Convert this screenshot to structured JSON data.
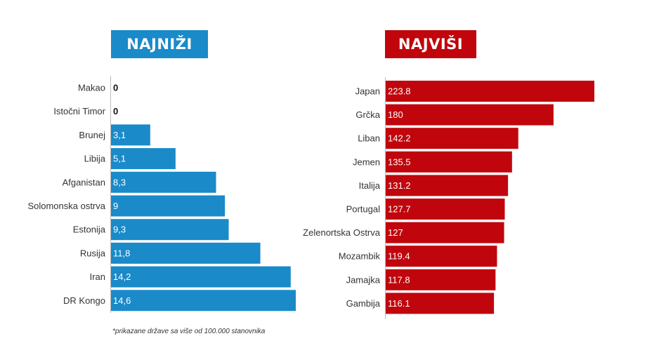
{
  "colors": {
    "left": "#1a8ac9",
    "right": "#c0060c"
  },
  "chart_data": [
    {
      "type": "bar",
      "orientation": "horizontal",
      "title": "NAJNIŽI",
      "categories": [
        "Makao",
        "Istočni Timor",
        "Brunej",
        "Libija",
        "Afganistan",
        "Solomonska ostrva",
        "Estonija",
        "Rusija",
        "Iran",
        "DR Kongo"
      ],
      "values": [
        0,
        0,
        3.1,
        5.1,
        8.3,
        9,
        9.3,
        11.8,
        14.2,
        14.6
      ],
      "value_labels": [
        "0",
        "0",
        "3,1",
        "5,1",
        "8,3",
        "9",
        "9,3",
        "11,8",
        "14,2",
        "14,6"
      ],
      "xlim": [
        0,
        14.6
      ]
    },
    {
      "type": "bar",
      "orientation": "horizontal",
      "title": "NAJVIŠI",
      "categories": [
        "Japan",
        "Grčka",
        "Liban",
        "Jemen",
        "Italija",
        "Portugal",
        "Zelenortska Ostrva",
        "Mozambik",
        "Jamajka",
        "Gambija"
      ],
      "values": [
        223.8,
        180,
        142.2,
        135.5,
        131.2,
        127.7,
        127,
        119.4,
        117.8,
        116.1
      ],
      "value_labels": [
        "223.8",
        "180",
        "142.2",
        "135.5",
        "131.2",
        "127.7",
        "127",
        "119.4",
        "117.8",
        "116.1"
      ],
      "xlim": [
        0,
        223.8
      ]
    }
  ],
  "footnote": "*prikazane države sa više od 100.000 stanovnika"
}
